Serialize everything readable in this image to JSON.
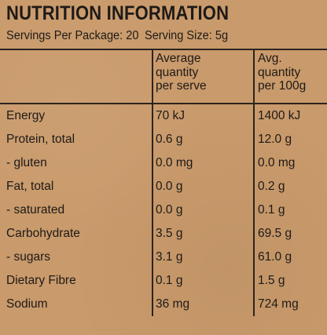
{
  "title": "NUTRITION INFORMATION",
  "servings": {
    "per_package": "Servings Per Package: 20",
    "serving_size": "Serving Size: 5g"
  },
  "columns": {
    "per_serve": "Average\nquantity\nper serve",
    "per_100g": "Avg.\nquantity\nper 100g"
  },
  "rows": [
    {
      "nutrient": "Energy",
      "per_serve": "70 kJ",
      "per_100g": "1400 kJ"
    },
    {
      "nutrient": "Protein, total",
      "per_serve": "0.6 g",
      "per_100g": "12.0 g"
    },
    {
      "nutrient": " - gluten",
      "per_serve": "0.0 mg",
      "per_100g": "0.0 mg"
    },
    {
      "nutrient": "Fat, total",
      "per_serve": "0.0 g",
      "per_100g": "0.2 g"
    },
    {
      "nutrient": " - saturated",
      "per_serve": "0.0 g",
      "per_100g": "0.1 g"
    },
    {
      "nutrient": "Carbohydrate",
      "per_serve": "3.5 g",
      "per_100g": "69.5 g"
    },
    {
      "nutrient": " - sugars",
      "per_serve": "3.1 g",
      "per_100g": "61.0 g"
    },
    {
      "nutrient": "Dietary Fibre",
      "per_serve": "0.1 g",
      "per_100g": "1.5 g"
    },
    {
      "nutrient": "Sodium",
      "per_serve": "36 mg",
      "per_100g": "724 mg"
    }
  ],
  "colors": {
    "background": "#c99a6b",
    "text": "#1e1a17",
    "rule": "#2b241f"
  }
}
